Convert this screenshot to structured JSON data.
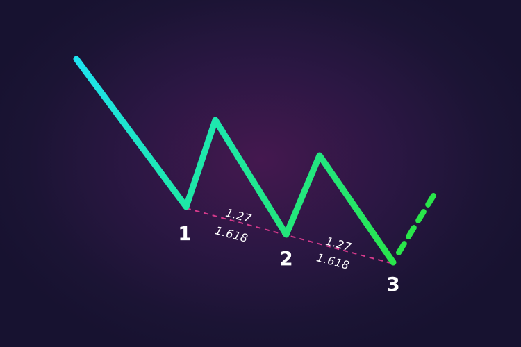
{
  "pattern": {
    "points": [
      {
        "label": "1"
      },
      {
        "label": "2"
      },
      {
        "label": "3"
      }
    ],
    "ratios": [
      {
        "top": "1.27",
        "bottom": "1.618"
      },
      {
        "top": "1.27",
        "bottom": "1.618"
      }
    ],
    "colors": {
      "line_start": "#1ee3f0",
      "line_mid": "#1ee8a6",
      "line_end": "#29e64a",
      "projection": "#29e64a",
      "trendline": "#d63a8c",
      "label": "#ffffff"
    }
  }
}
